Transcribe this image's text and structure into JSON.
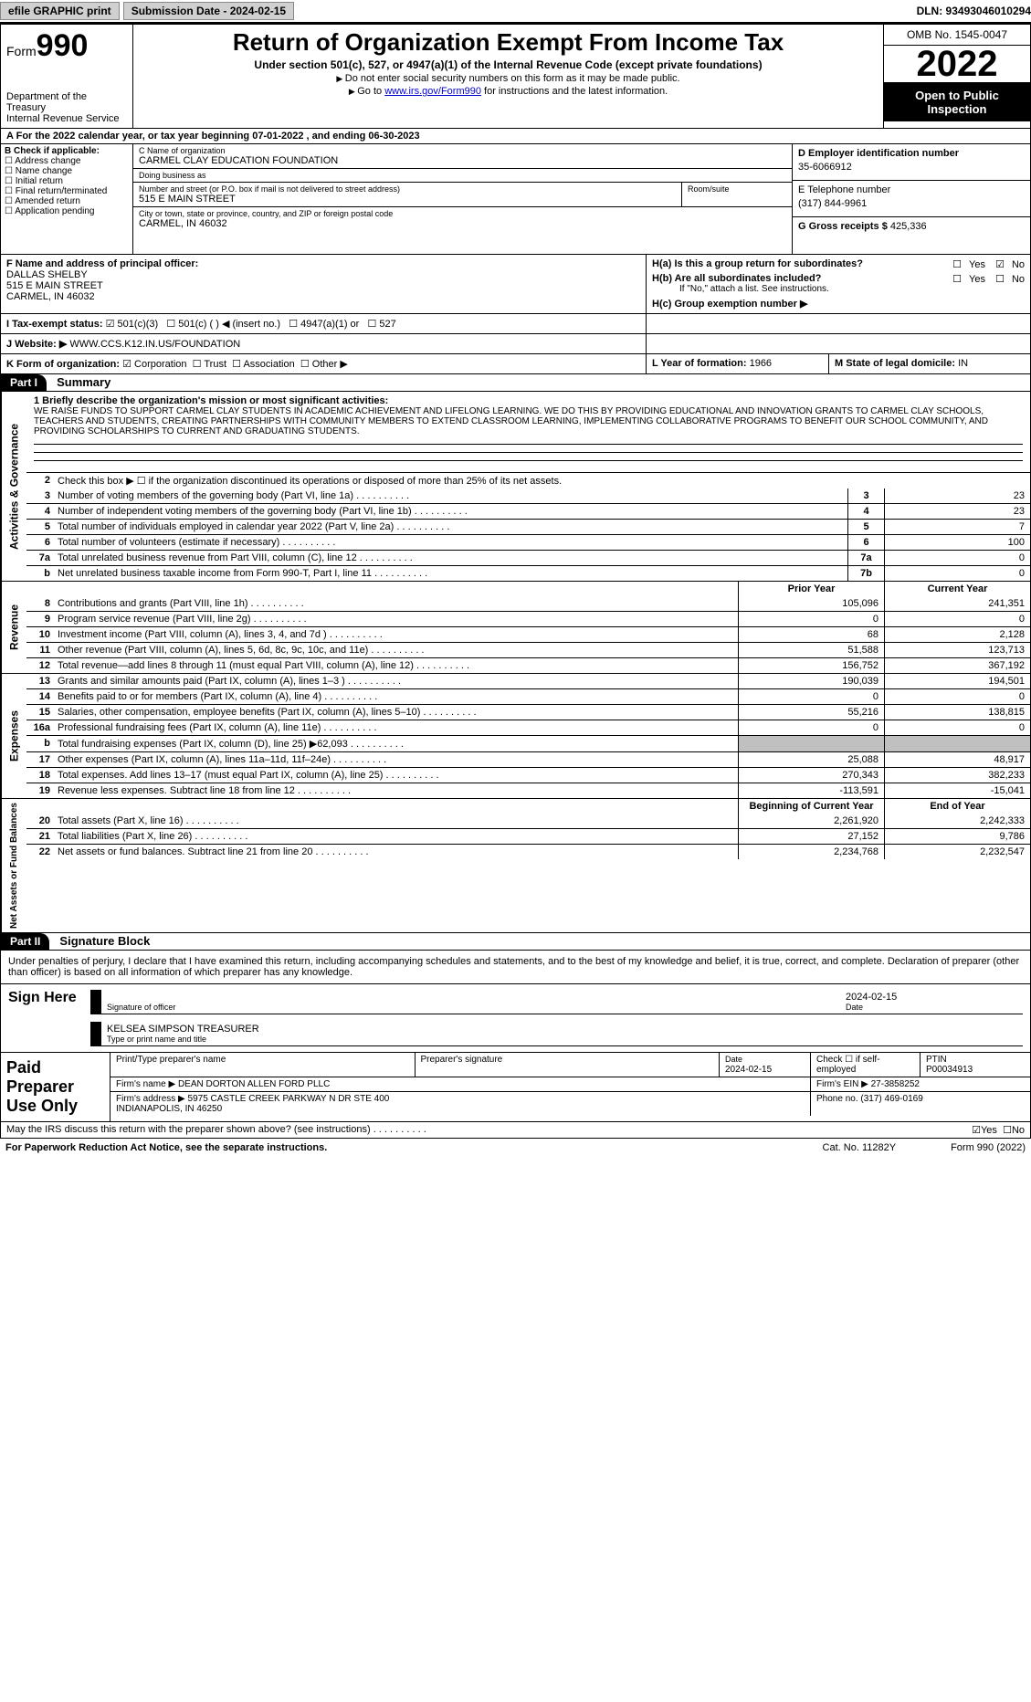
{
  "topbar": {
    "efile": "efile GRAPHIC print",
    "sub_date_label": "Submission Date - 2024-02-15",
    "dln": "DLN: 93493046010294"
  },
  "header": {
    "form_label": "Form",
    "form_num": "990",
    "dept": "Department of the Treasury",
    "irs": "Internal Revenue Service",
    "title": "Return of Organization Exempt From Income Tax",
    "subtitle": "Under section 501(c), 527, or 4947(a)(1) of the Internal Revenue Code (except private foundations)",
    "note1": "Do not enter social security numbers on this form as it may be made public.",
    "note2_pre": "Go to ",
    "note2_link": "www.irs.gov/Form990",
    "note2_post": " for instructions and the latest information.",
    "omb": "OMB No. 1545-0047",
    "year": "2022",
    "open": "Open to Public Inspection"
  },
  "rowA": "For the 2022 calendar year, or tax year beginning 07-01-2022    , and ending 06-30-2023",
  "colB": {
    "hdr": "B Check if applicable:",
    "items": [
      "Address change",
      "Name change",
      "Initial return",
      "Final return/terminated",
      "Amended return",
      "Application pending"
    ]
  },
  "colC": {
    "name_label": "C Name of organization",
    "name": "CARMEL CLAY EDUCATION FOUNDATION",
    "dba_label": "Doing business as",
    "dba": "",
    "addr_label": "Number and street (or P.O. box if mail is not delivered to street address)",
    "addr": "515 E MAIN STREET",
    "room_label": "Room/suite",
    "city_label": "City or town, state or province, country, and ZIP or foreign postal code",
    "city": "CARMEL, IN  46032"
  },
  "colD": {
    "d_label": "D Employer identification number",
    "d_val": "35-6066912",
    "e_label": "E Telephone number",
    "e_val": "(317) 844-9961",
    "g_label": "G Gross receipts $",
    "g_val": "425,336"
  },
  "rowF": {
    "label": "F  Name and address of principal officer:",
    "name": "DALLAS SHELBY",
    "addr1": "515 E MAIN STREET",
    "addr2": "CARMEL, IN  46032"
  },
  "rowH": {
    "ha": "H(a)  Is this a group return for subordinates?",
    "hb": "H(b)  Are all subordinates included?",
    "hb_note": "If \"No,\" attach a list. See instructions.",
    "hc": "H(c)  Group exemption number ▶",
    "yes": "Yes",
    "no": "No"
  },
  "rowI": {
    "label": "I   Tax-exempt status:",
    "opts": [
      "501(c)(3)",
      "501(c) (  ) ◀ (insert no.)",
      "4947(a)(1) or",
      "527"
    ]
  },
  "rowJ": {
    "label": "J   Website: ▶",
    "val": "WWW.CCS.K12.IN.US/FOUNDATION"
  },
  "rowK": {
    "label": "K Form of organization:",
    "opts": [
      "Corporation",
      "Trust",
      "Association",
      "Other ▶"
    ]
  },
  "rowL": {
    "label": "L Year of formation:",
    "val": "1966"
  },
  "rowM": {
    "label": "M State of legal domicile:",
    "val": "IN"
  },
  "partI": {
    "hdr": "Part I",
    "title": "Summary",
    "vlabels": [
      "Activities & Governance",
      "Revenue",
      "Expenses",
      "Net Assets or Fund Balances"
    ],
    "mission_label": "1  Briefly describe the organization's mission or most significant activities:",
    "mission": "WE RAISE FUNDS TO SUPPORT CARMEL CLAY STUDENTS IN ACADEMIC ACHIEVEMENT AND LIFELONG LEARNING. WE DO THIS BY PROVIDING EDUCATIONAL AND INNOVATION GRANTS TO CARMEL CLAY SCHOOLS, TEACHERS AND STUDENTS, CREATING PARTNERSHIPS WITH COMMUNITY MEMBERS TO EXTEND CLASSROOM LEARNING, IMPLEMENTING COLLABORATIVE PROGRAMS TO BENEFIT OUR SCHOOL COMMUNITY, AND PROVIDING SCHOLARSHIPS TO CURRENT AND GRADUATING STUDENTS.",
    "line2": "Check this box ▶ ☐  if the organization discontinued its operations or disposed of more than 25% of its net assets.",
    "gov": [
      {
        "n": "3",
        "t": "Number of voting members of the governing body (Part VI, line 1a)",
        "b": "3",
        "v": "23"
      },
      {
        "n": "4",
        "t": "Number of independent voting members of the governing body (Part VI, line 1b)",
        "b": "4",
        "v": "23"
      },
      {
        "n": "5",
        "t": "Total number of individuals employed in calendar year 2022 (Part V, line 2a)",
        "b": "5",
        "v": "7"
      },
      {
        "n": "6",
        "t": "Total number of volunteers (estimate if necessary)",
        "b": "6",
        "v": "100"
      },
      {
        "n": "7a",
        "t": "Total unrelated business revenue from Part VIII, column (C), line 12",
        "b": "7a",
        "v": "0"
      },
      {
        "n": "b",
        "t": "Net unrelated business taxable income from Form 990-T, Part I, line 11",
        "b": "7b",
        "v": "0"
      }
    ],
    "col_hdr": {
      "prior": "Prior Year",
      "curr": "Current Year",
      "begin": "Beginning of Current Year",
      "end": "End of Year"
    },
    "rev": [
      {
        "n": "8",
        "t": "Contributions and grants (Part VIII, line 1h)",
        "p": "105,096",
        "c": "241,351"
      },
      {
        "n": "9",
        "t": "Program service revenue (Part VIII, line 2g)",
        "p": "0",
        "c": "0"
      },
      {
        "n": "10",
        "t": "Investment income (Part VIII, column (A), lines 3, 4, and 7d )",
        "p": "68",
        "c": "2,128"
      },
      {
        "n": "11",
        "t": "Other revenue (Part VIII, column (A), lines 5, 6d, 8c, 9c, 10c, and 11e)",
        "p": "51,588",
        "c": "123,713"
      },
      {
        "n": "12",
        "t": "Total revenue—add lines 8 through 11 (must equal Part VIII, column (A), line 12)",
        "p": "156,752",
        "c": "367,192"
      }
    ],
    "exp": [
      {
        "n": "13",
        "t": "Grants and similar amounts paid (Part IX, column (A), lines 1–3 )",
        "p": "190,039",
        "c": "194,501"
      },
      {
        "n": "14",
        "t": "Benefits paid to or for members (Part IX, column (A), line 4)",
        "p": "0",
        "c": "0"
      },
      {
        "n": "15",
        "t": "Salaries, other compensation, employee benefits (Part IX, column (A), lines 5–10)",
        "p": "55,216",
        "c": "138,815"
      },
      {
        "n": "16a",
        "t": "Professional fundraising fees (Part IX, column (A), line 11e)",
        "p": "0",
        "c": "0"
      },
      {
        "n": "b",
        "t": "Total fundraising expenses (Part IX, column (D), line 25) ▶62,093",
        "p": "",
        "c": "",
        "shade": true
      },
      {
        "n": "17",
        "t": "Other expenses (Part IX, column (A), lines 11a–11d, 11f–24e)",
        "p": "25,088",
        "c": "48,917"
      },
      {
        "n": "18",
        "t": "Total expenses. Add lines 13–17 (must equal Part IX, column (A), line 25)",
        "p": "270,343",
        "c": "382,233"
      },
      {
        "n": "19",
        "t": "Revenue less expenses. Subtract line 18 from line 12",
        "p": "-113,591",
        "c": "-15,041"
      }
    ],
    "net": [
      {
        "n": "20",
        "t": "Total assets (Part X, line 16)",
        "p": "2,261,920",
        "c": "2,242,333"
      },
      {
        "n": "21",
        "t": "Total liabilities (Part X, line 26)",
        "p": "27,152",
        "c": "9,786"
      },
      {
        "n": "22",
        "t": "Net assets or fund balances. Subtract line 21 from line 20",
        "p": "2,234,768",
        "c": "2,232,547"
      }
    ]
  },
  "partII": {
    "hdr": "Part II",
    "title": "Signature Block",
    "decl": "Under penalties of perjury, I declare that I have examined this return, including accompanying schedules and statements, and to the best of my knowledge and belief, it is true, correct, and complete. Declaration of preparer (other than officer) is based on all information of which preparer has any knowledge.",
    "sign_here": "Sign Here",
    "sig_officer": "Signature of officer",
    "sig_date": "2024-02-15",
    "date_label": "Date",
    "name_title": "KELSEA SIMPSON  TREASURER",
    "name_title_label": "Type or print name and title",
    "paid": "Paid Preparer Use Only",
    "pp_name_label": "Print/Type preparer's name",
    "pp_sig_label": "Preparer's signature",
    "pp_date": "2024-02-15",
    "pp_check": "Check ☐ if self-employed",
    "ptin_label": "PTIN",
    "ptin": "P00034913",
    "firm_name_label": "Firm's name    ▶",
    "firm_name": "DEAN DORTON ALLEN FORD PLLC",
    "firm_ein_label": "Firm's EIN ▶",
    "firm_ein": "27-3858252",
    "firm_addr_label": "Firm's address ▶",
    "firm_addr": "5975 CASTLE CREEK PARKWAY N DR STE 400\nINDIANAPOLIS, IN  46250",
    "phone_label": "Phone no.",
    "phone": "(317) 469-0169",
    "discuss": "May the IRS discuss this return with the preparer shown above? (see instructions)"
  },
  "footer": {
    "paperwork": "For Paperwork Reduction Act Notice, see the separate instructions.",
    "cat": "Cat. No. 11282Y",
    "form": "Form 990 (2022)"
  }
}
